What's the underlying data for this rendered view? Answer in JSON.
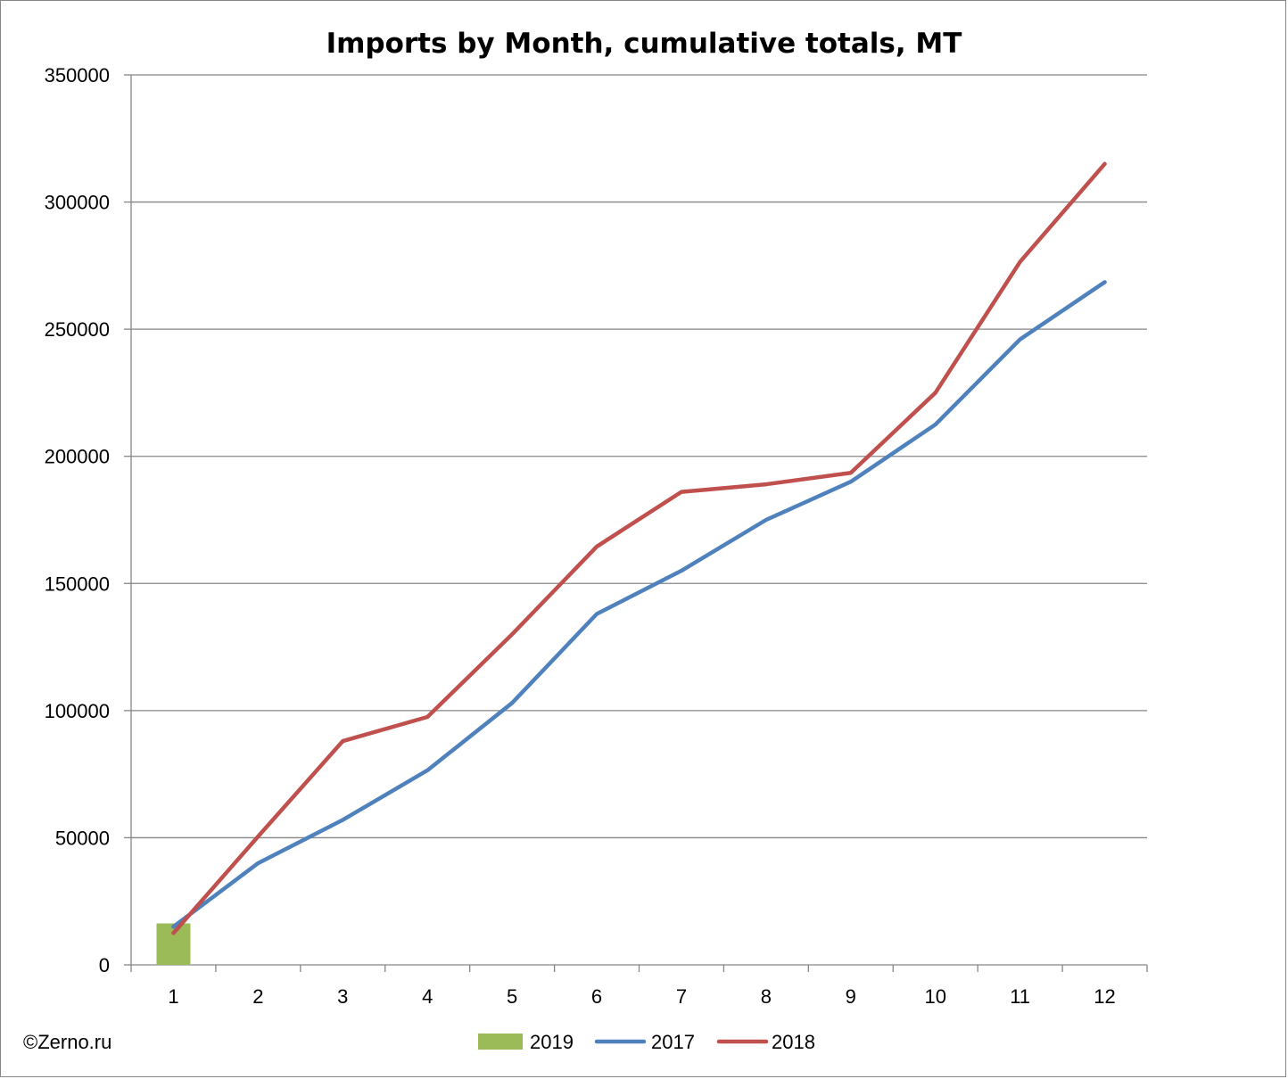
{
  "watermark": "©Zerno.ru",
  "chart_data": {
    "type": "line",
    "title": "Imports by Month, cumulative totals, MT",
    "xlabel": "",
    "ylabel": "",
    "categories": [
      "1",
      "2",
      "3",
      "4",
      "5",
      "6",
      "7",
      "8",
      "9",
      "10",
      "11",
      "12"
    ],
    "ylim": [
      0,
      350000
    ],
    "yticks": [
      0,
      50000,
      100000,
      150000,
      200000,
      250000,
      300000,
      350000
    ],
    "yticks_labels": [
      "0",
      "50000",
      "100000",
      "150000",
      "200000",
      "250000",
      "300000",
      "350000"
    ],
    "grid": true,
    "legend_position": "bottom",
    "series": [
      {
        "name": "2019",
        "kind": "bar",
        "color": "#9bbb59",
        "values": [
          16300,
          null,
          null,
          null,
          null,
          null,
          null,
          null,
          null,
          null,
          null,
          null
        ]
      },
      {
        "name": "2017",
        "kind": "line",
        "color": "#4f81bd",
        "values": [
          15000,
          40000,
          57000,
          76500,
          103000,
          138000,
          155000,
          175000,
          190000,
          212500,
          246000,
          268500
        ]
      },
      {
        "name": "2018",
        "kind": "line",
        "color": "#c0504d",
        "values": [
          12500,
          50500,
          88000,
          97500,
          130000,
          164500,
          186000,
          189000,
          193500,
          225000,
          276500,
          315000
        ]
      }
    ]
  }
}
